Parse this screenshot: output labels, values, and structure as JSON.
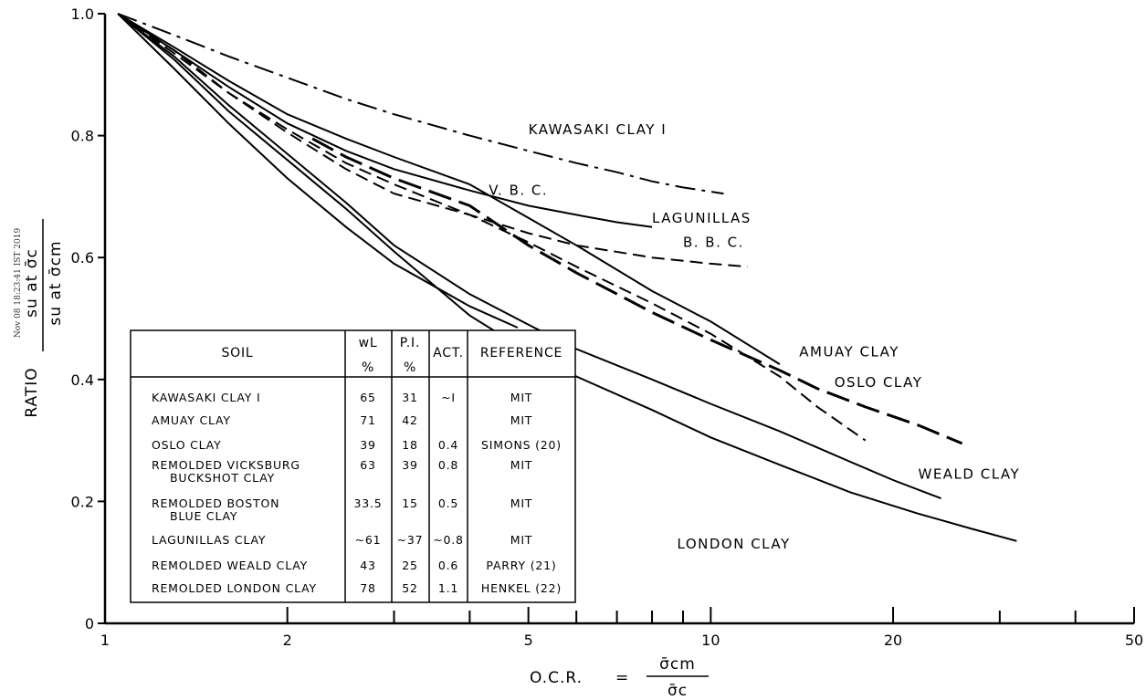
{
  "chart_data": {
    "type": "line",
    "xscale": "log",
    "xlim": [
      1,
      50
    ],
    "ylim": [
      0,
      1.0
    ],
    "x_ticks": [
      "1",
      "2",
      "5",
      "10",
      "20",
      "50"
    ],
    "y_ticks": [
      "0",
      "0.2",
      "0.4",
      "0.6",
      "0.8",
      "1.0"
    ],
    "xlabel": "O.C.R.",
    "xlabel_eq": "=",
    "xlabel_num": "σ̄cm",
    "xlabel_den": "σ̄c",
    "ylabel": "RATIO",
    "ylabel_num": "su at σ̄c",
    "ylabel_den": "su at σ̄cm",
    "stamp": "Nov 08 18:23:41 IST 2019",
    "series": [
      {
        "name": "KAWASAKI CLAY I",
        "style": "dashdot",
        "x": [
          1.05,
          1.3,
          1.6,
          2,
          2.5,
          3,
          4,
          5,
          6,
          7,
          8,
          9,
          10.5
        ],
        "y": [
          1.0,
          0.965,
          0.93,
          0.895,
          0.86,
          0.835,
          0.8,
          0.775,
          0.755,
          0.74,
          0.725,
          0.715,
          0.705
        ]
      },
      {
        "name": "V. B. C.",
        "style": "solid",
        "x": [
          1.05,
          1.3,
          1.6,
          2,
          2.5,
          3,
          4,
          5,
          6,
          8,
          10,
          13
        ],
        "y": [
          1.0,
          0.945,
          0.89,
          0.835,
          0.795,
          0.765,
          0.72,
          0.665,
          0.62,
          0.545,
          0.495,
          0.425
        ]
      },
      {
        "name": "LAGUNILLAS",
        "style": "solid",
        "x": [
          1.05,
          1.3,
          1.6,
          2,
          2.5,
          3,
          4,
          5,
          6,
          7,
          8
        ],
        "y": [
          1.0,
          0.94,
          0.88,
          0.82,
          0.775,
          0.745,
          0.71,
          0.685,
          0.67,
          0.658,
          0.65
        ]
      },
      {
        "name": "B. B. C.",
        "style": "dashed",
        "x": [
          1.05,
          1.3,
          1.6,
          2,
          2.5,
          3,
          4,
          5,
          6,
          8,
          10,
          11.5
        ],
        "y": [
          1.0,
          0.935,
          0.87,
          0.81,
          0.755,
          0.72,
          0.67,
          0.64,
          0.62,
          0.6,
          0.59,
          0.585
        ]
      },
      {
        "name": "AMUAY CLAY",
        "style": "dashed",
        "x": [
          1.05,
          1.3,
          1.6,
          2,
          2.5,
          3,
          4,
          5,
          6,
          8,
          10,
          13,
          15,
          18
        ],
        "y": [
          1.0,
          0.94,
          0.87,
          0.805,
          0.745,
          0.705,
          0.67,
          0.625,
          0.585,
          0.525,
          0.475,
          0.405,
          0.355,
          0.3
        ]
      },
      {
        "name": "OSLO CLAY",
        "style": "longdash",
        "x": [
          2.2,
          2.5,
          3,
          4,
          5,
          6,
          8,
          10,
          13,
          15,
          18,
          22,
          26
        ],
        "y": [
          0.795,
          0.765,
          0.73,
          0.685,
          0.62,
          0.575,
          0.51,
          0.465,
          0.415,
          0.385,
          0.355,
          0.325,
          0.295
        ]
      },
      {
        "name": "WEALD CLAY",
        "style": "solid",
        "x": [
          1.05,
          1.3,
          1.6,
          2,
          2.5,
          3,
          4,
          5,
          6,
          8,
          10,
          13,
          17,
          20,
          24
        ],
        "y": [
          1.0,
          0.93,
          0.85,
          0.77,
          0.69,
          0.62,
          0.54,
          0.49,
          0.45,
          0.4,
          0.36,
          0.315,
          0.265,
          0.235,
          0.205
        ]
      },
      {
        "name": "LONDON CLAY",
        "style": "solid",
        "x": [
          1.05,
          1.3,
          1.6,
          2,
          2.5,
          3,
          4,
          5,
          6,
          8,
          10,
          13,
          17,
          22,
          27,
          32
        ],
        "y": [
          1.0,
          0.925,
          0.84,
          0.76,
          0.68,
          0.61,
          0.505,
          0.445,
          0.405,
          0.35,
          0.305,
          0.26,
          0.215,
          0.18,
          0.155,
          0.135
        ]
      },
      {
        "name": "",
        "style": "solid",
        "x": [
          1.05,
          1.3,
          1.6,
          2,
          2.5,
          3,
          4,
          4.8
        ],
        "y": [
          1.0,
          0.91,
          0.82,
          0.73,
          0.65,
          0.59,
          0.52,
          0.485
        ]
      }
    ],
    "curve_labels": [
      {
        "text": "KAWASAKI CLAY I",
        "x": 5.0,
        "y": 0.81
      },
      {
        "text": "V. B. C.",
        "x": 4.3,
        "y": 0.71
      },
      {
        "text": "LAGUNILLAS",
        "x": 8.0,
        "y": 0.665
      },
      {
        "text": "B. B. C.",
        "x": 9.0,
        "y": 0.625
      },
      {
        "text": "AMUAY CLAY",
        "x": 14.0,
        "y": 0.445
      },
      {
        "text": "OSLO CLAY",
        "x": 16.0,
        "y": 0.395
      },
      {
        "text": "WEALD CLAY",
        "x": 22.0,
        "y": 0.245
      },
      {
        "text": "LONDON CLAY",
        "x": 8.8,
        "y": 0.13
      }
    ]
  },
  "table": {
    "headers": {
      "soil": "SOIL",
      "wl": "wL",
      "wl_unit": "%",
      "pi": "P.I.",
      "pi_unit": "%",
      "act": "ACT.",
      "ref": "REFERENCE"
    },
    "rows": [
      {
        "soil": "KAWASAKI CLAY I",
        "soil2": "",
        "wl": "65",
        "pi": "31",
        "act": "~I",
        "ref": "MIT"
      },
      {
        "soil": "AMUAY CLAY",
        "soil2": "",
        "wl": "71",
        "pi": "42",
        "act": "",
        "ref": "MIT"
      },
      {
        "soil": "OSLO CLAY",
        "soil2": "",
        "wl": "39",
        "pi": "18",
        "act": "0.4",
        "ref": "SIMONS (20)"
      },
      {
        "soil": "REMOLDED VICKSBURG",
        "soil2": "BUCKSHOT CLAY",
        "wl": "63",
        "pi": "39",
        "act": "0.8",
        "ref": "MIT"
      },
      {
        "soil": "REMOLDED BOSTON",
        "soil2": "BLUE CLAY",
        "wl": "33.5",
        "pi": "15",
        "act": "0.5",
        "ref": "MIT"
      },
      {
        "soil": "LAGUNILLAS CLAY",
        "soil2": "",
        "wl": "~61",
        "pi": "~37",
        "act": "~0.8",
        "ref": "MIT"
      },
      {
        "soil": "REMOLDED WEALD CLAY",
        "soil2": "",
        "wl": "43",
        "pi": "25",
        "act": "0.6",
        "ref": "PARRY (21)"
      },
      {
        "soil": "REMOLDED LONDON CLAY",
        "soil2": "",
        "wl": "78",
        "pi": "52",
        "act": "1.1",
        "ref": "HENKEL (22)"
      }
    ]
  }
}
